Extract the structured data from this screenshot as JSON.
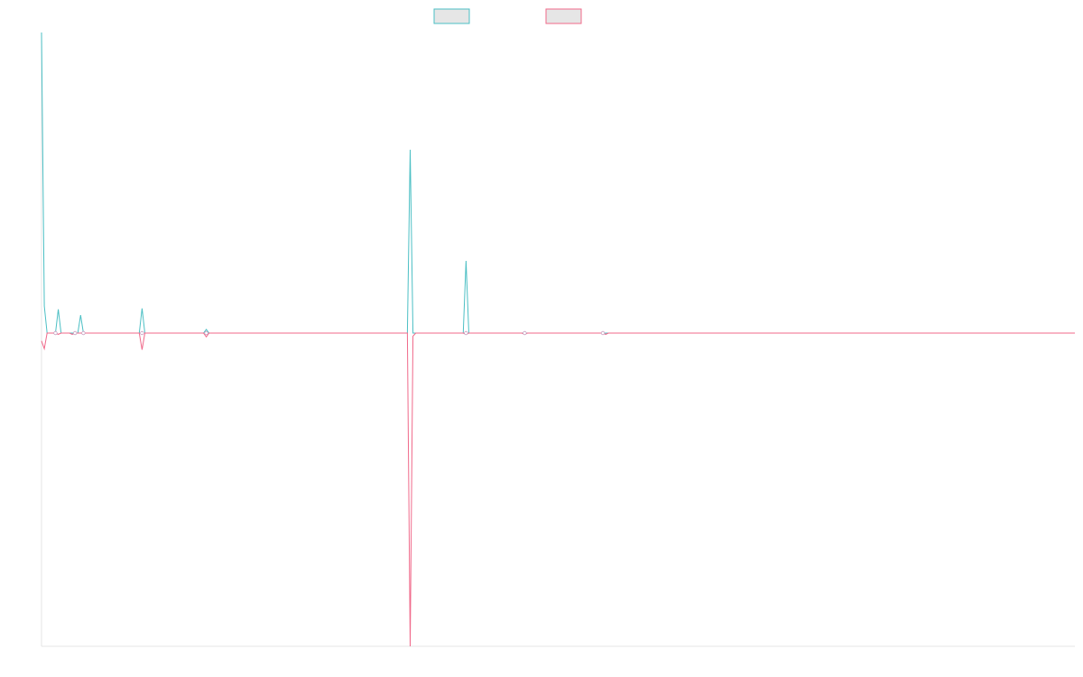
{
  "chart_data": {
    "type": "line",
    "title": "",
    "xlabel": "",
    "ylabel": "",
    "legend_position": "top-center",
    "grid": false,
    "x_count": 371,
    "ylim": [
      -1.0,
      1.0
    ],
    "series": [
      {
        "color": "#4bbfc4",
        "fill": "#e6e6e6",
        "points": [
          [
            0,
            1.0
          ],
          [
            1,
            0.09
          ],
          [
            2,
            0.0
          ],
          [
            5,
            0.0
          ],
          [
            6,
            0.079
          ],
          [
            7,
            0.0
          ],
          [
            8,
            0.0
          ],
          [
            10,
            0.0
          ],
          [
            11,
            0.0
          ],
          [
            12,
            0.0
          ],
          [
            13,
            0.0
          ],
          [
            14,
            0.06
          ],
          [
            15,
            0.0
          ],
          [
            21,
            0.0
          ],
          [
            35,
            0.0
          ],
          [
            36,
            0.082
          ],
          [
            37,
            0.0
          ],
          [
            58,
            0.0
          ],
          [
            59,
            0.012
          ],
          [
            60,
            0.0
          ],
          [
            131,
            0.0
          ],
          [
            132,
            0.61
          ],
          [
            133,
            0.0
          ],
          [
            151,
            0.0
          ],
          [
            152,
            0.24
          ],
          [
            153,
            0.0
          ],
          [
            173,
            0.0
          ],
          [
            191,
            0.0
          ],
          [
            201,
            0.0
          ],
          [
            370,
            0.0
          ]
        ]
      },
      {
        "color": "#f0698a",
        "fill": "#e6e6e6",
        "points": [
          [
            0,
            -0.025
          ],
          [
            1,
            -0.05
          ],
          [
            2,
            0.0
          ],
          [
            5,
            0.0
          ],
          [
            6,
            -0.004
          ],
          [
            7,
            0.0
          ],
          [
            10,
            0.0
          ],
          [
            11,
            -0.004
          ],
          [
            12,
            0.0
          ],
          [
            14,
            0.0
          ],
          [
            15,
            0.0
          ],
          [
            21,
            0.0
          ],
          [
            35,
            0.0
          ],
          [
            36,
            -0.053
          ],
          [
            37,
            0.0
          ],
          [
            58,
            0.0
          ],
          [
            59,
            -0.012
          ],
          [
            60,
            0.0
          ],
          [
            131,
            0.0
          ],
          [
            132,
            -1.0
          ],
          [
            133,
            -0.01
          ],
          [
            134,
            0.0
          ],
          [
            151,
            0.0
          ],
          [
            152,
            -0.004
          ],
          [
            153,
            0.0
          ],
          [
            172,
            0.0
          ],
          [
            173,
            -0.004
          ],
          [
            174,
            0.0
          ],
          [
            191,
            0.0
          ],
          [
            201,
            0.0
          ],
          [
            202,
            -0.004
          ],
          [
            203,
            0.0
          ],
          [
            370,
            0.0
          ]
        ]
      }
    ]
  }
}
